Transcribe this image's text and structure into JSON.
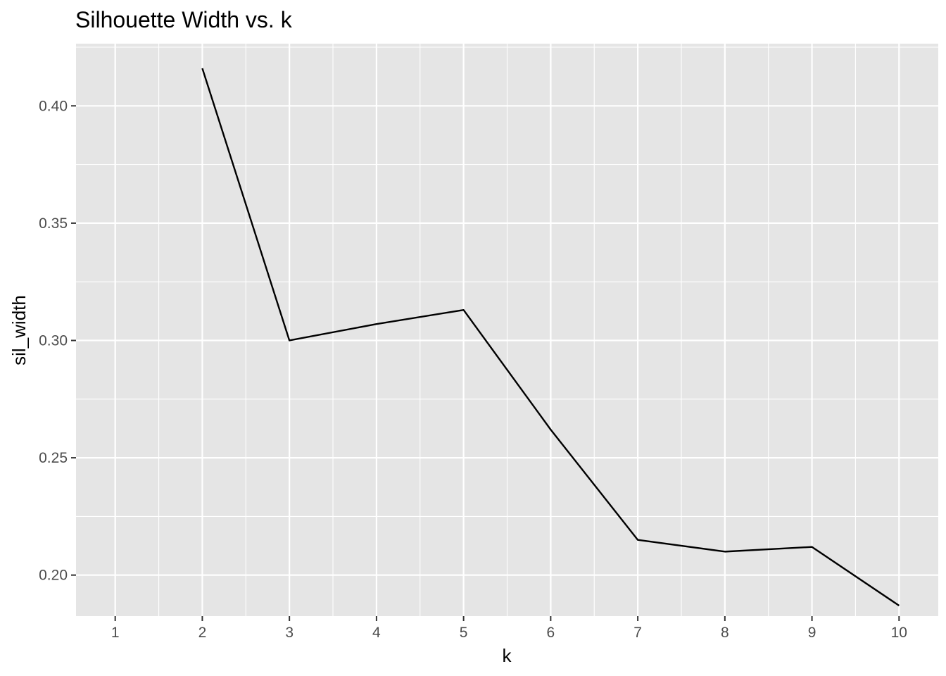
{
  "chart_data": {
    "type": "line",
    "title": "Silhouette Width vs. k",
    "xlabel": "k",
    "ylabel": "sil_width",
    "x_ticks": [
      1,
      2,
      3,
      4,
      5,
      6,
      7,
      8,
      9,
      10
    ],
    "y_ticks": [
      "0.20",
      "0.25",
      "0.30",
      "0.35",
      "0.40"
    ],
    "xlim": [
      0.55,
      10.45
    ],
    "ylim": [
      0.1825,
      0.4265
    ],
    "grid": true,
    "series": [
      {
        "x": [
          2,
          3,
          4,
          5,
          6,
          7,
          8,
          9,
          10
        ],
        "y": [
          0.416,
          0.3,
          0.307,
          0.313,
          0.262,
          0.215,
          0.21,
          0.212,
          0.187
        ]
      }
    ],
    "colors": {
      "panel": "#e5e5e5",
      "grid": "#ffffff",
      "line": "#000000",
      "tick_text": "#4d4d4d"
    }
  }
}
